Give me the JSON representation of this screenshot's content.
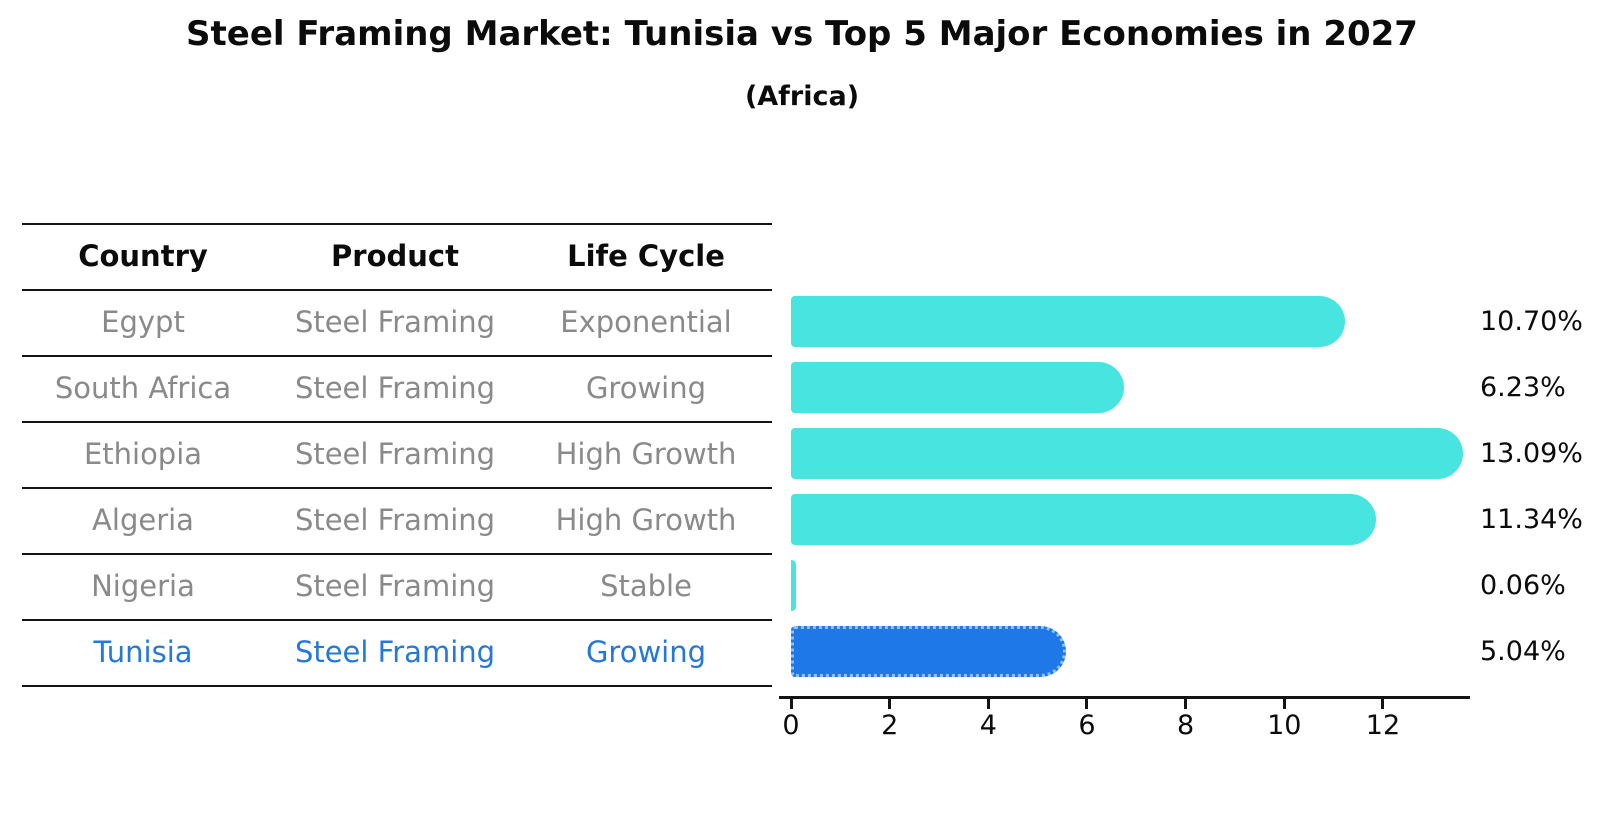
{
  "title": "Steel Framing Market: Tunisia vs Top 5 Major Economies in 2027",
  "subtitle": "(Africa)",
  "table": {
    "headers": {
      "country": "Country",
      "product": "Product",
      "life_cycle": "Life Cycle"
    },
    "rows": [
      {
        "country": "Egypt",
        "product": "Steel Framing",
        "life_cycle": "Exponential",
        "highlight": false
      },
      {
        "country": "South Africa",
        "product": "Steel Framing",
        "life_cycle": "Growing",
        "highlight": false
      },
      {
        "country": "Ethiopia",
        "product": "Steel Framing",
        "life_cycle": "High Growth",
        "highlight": false
      },
      {
        "country": "Algeria",
        "product": "Steel Framing",
        "life_cycle": "High Growth",
        "highlight": false
      },
      {
        "country": "Nigeria",
        "product": "Steel Framing",
        "life_cycle": "Stable",
        "highlight": false
      },
      {
        "country": "Tunisia",
        "product": "Steel Framing",
        "life_cycle": "Growing",
        "highlight": true
      }
    ]
  },
  "chart_data": {
    "type": "bar",
    "orientation": "horizontal",
    "categories": [
      "Egypt",
      "South Africa",
      "Ethiopia",
      "Algeria",
      "Nigeria",
      "Tunisia"
    ],
    "values": [
      10.7,
      6.23,
      13.09,
      11.34,
      0.06,
      5.04
    ],
    "value_labels": [
      "10.70%",
      "6.23%",
      "13.09%",
      "11.34%",
      "0.06%",
      "5.04%"
    ],
    "x_ticks": [
      0,
      2,
      4,
      6,
      8,
      10,
      12
    ],
    "xlim": [
      0,
      13.7
    ],
    "grid": false,
    "legend": "none",
    "highlight_category": "Tunisia",
    "colors": {
      "bar": "#48e5e0",
      "highlight_bar": "#1e78e8",
      "highlight_border": "#8fc2f7",
      "table_text": "#8a8a8a",
      "highlight_text": "#2478dc",
      "text": "#0b0b0b"
    }
  }
}
